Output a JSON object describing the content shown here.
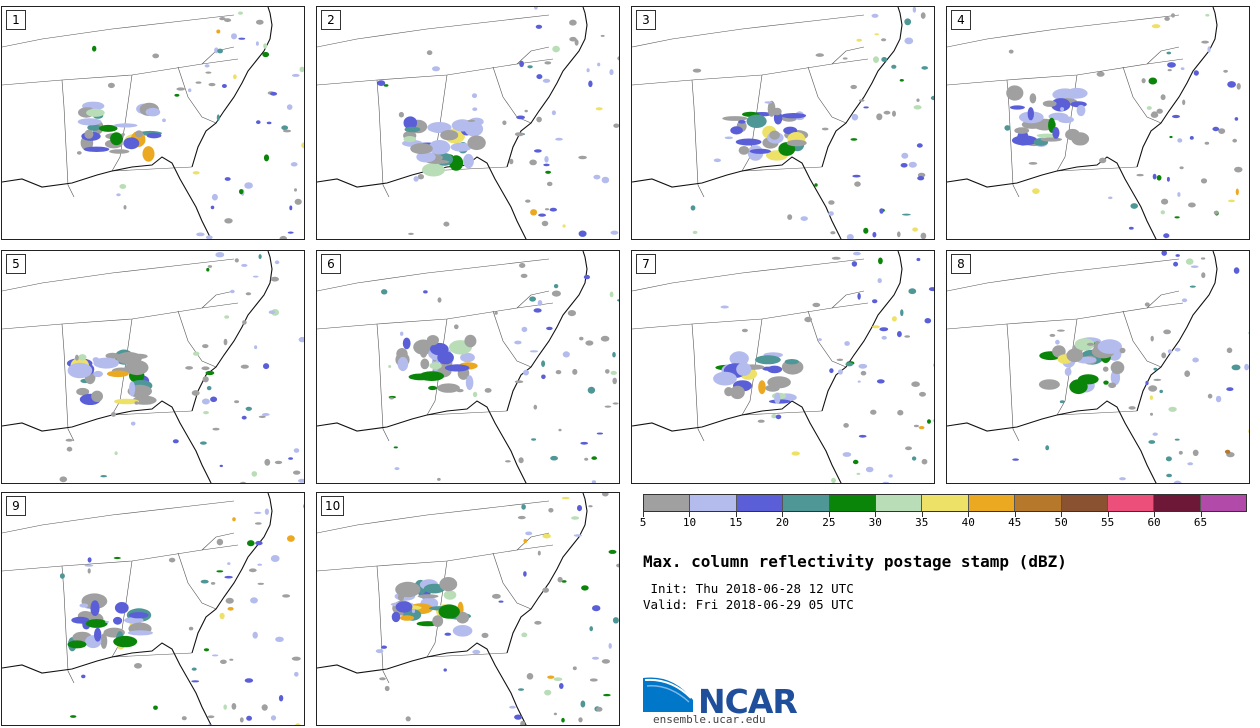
{
  "panels": [
    {
      "label": "1"
    },
    {
      "label": "2"
    },
    {
      "label": "3"
    },
    {
      "label": "4"
    },
    {
      "label": "5"
    },
    {
      "label": "6"
    },
    {
      "label": "7"
    },
    {
      "label": "8"
    },
    {
      "label": "9"
    },
    {
      "label": "10"
    }
  ],
  "colorbar": {
    "colors": [
      "#a0a0a0",
      "#b4bced",
      "#5a5fd7",
      "#4f9797",
      "#0a850a",
      "#b9ddb6",
      "#ede168",
      "#eba921",
      "#b6792c",
      "#8a5231",
      "#ec4f79",
      "#6e1837",
      "#b14aa8"
    ],
    "ticks": [
      "5",
      "10",
      "15",
      "20",
      "25",
      "30",
      "35",
      "40",
      "45",
      "50",
      "55",
      "60",
      "65"
    ]
  },
  "title": "Max. column reflectivity postage stamp (dBZ)",
  "init_text": " Init: Thu 2018-06-28 12 UTC",
  "valid_text": "Valid: Fri 2018-06-29 05 UTC",
  "logo": {
    "name": "NCAR",
    "url": "ensemble.ucar.edu",
    "brand_color": "#1f4f9a",
    "swoosh_color": "#0077c8"
  }
}
